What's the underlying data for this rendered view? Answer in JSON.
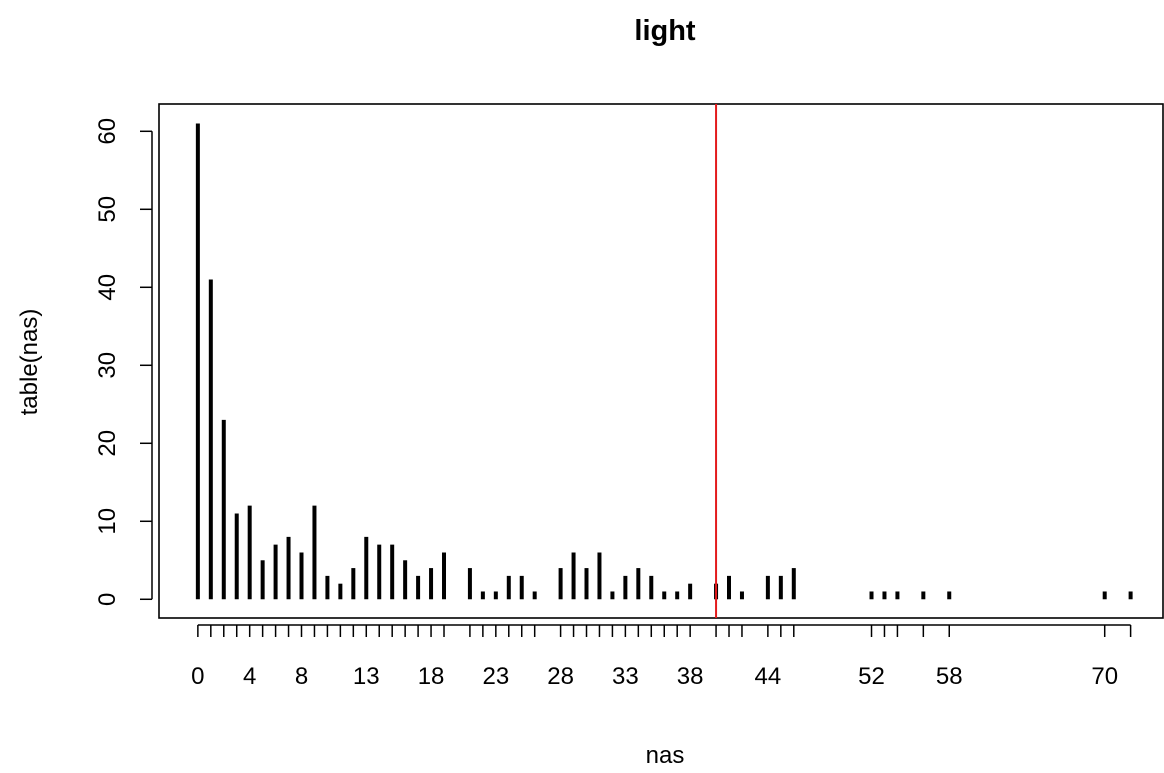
{
  "chart_data": {
    "type": "bar",
    "style": "histogram-spikes",
    "title": "light",
    "xlabel": "nas",
    "ylabel": "table(nas)",
    "x": [
      0,
      1,
      2,
      3,
      4,
      5,
      6,
      7,
      8,
      9,
      10,
      11,
      12,
      13,
      14,
      15,
      16,
      17,
      18,
      19,
      21,
      22,
      23,
      24,
      25,
      26,
      28,
      29,
      30,
      31,
      32,
      33,
      34,
      35,
      36,
      37,
      38,
      40,
      41,
      42,
      44,
      45,
      46,
      52,
      53,
      54,
      56,
      58,
      70,
      72
    ],
    "values": [
      61,
      41,
      23,
      11,
      12,
      5,
      7,
      8,
      6,
      12,
      3,
      2,
      4,
      8,
      7,
      7,
      5,
      3,
      4,
      6,
      4,
      1,
      1,
      3,
      3,
      1,
      4,
      6,
      4,
      6,
      1,
      3,
      4,
      3,
      1,
      1,
      2,
      2,
      3,
      1,
      3,
      3,
      4,
      1,
      1,
      1,
      1,
      1,
      1,
      1
    ],
    "x_tick_labels": [
      "0",
      "4",
      "8",
      "13",
      "18",
      "23",
      "28",
      "33",
      "38",
      "44",
      "52",
      "58",
      "70"
    ],
    "y_ticks": [
      0,
      10,
      20,
      30,
      40,
      50,
      60
    ],
    "xlim": [
      -3,
      74.5
    ],
    "ylim": [
      -2.4,
      63.5
    ],
    "grid": false,
    "reference_line": {
      "x": 40,
      "color": "#e31a1c"
    },
    "bar_color": "#000000"
  }
}
